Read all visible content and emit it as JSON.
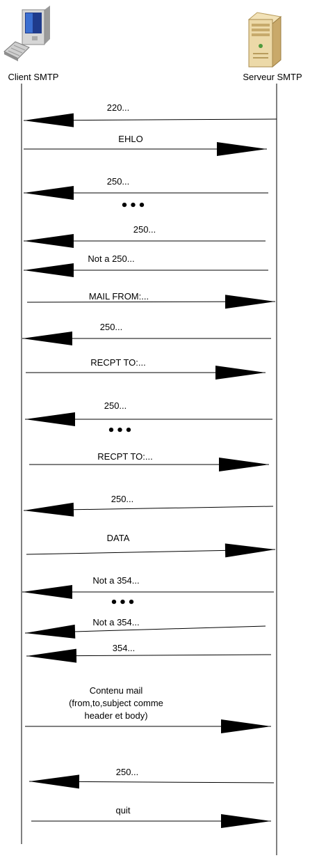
{
  "participants": {
    "client": {
      "label": "Client SMTP",
      "icon": "desktop-computer-icon"
    },
    "server": {
      "label": "Serveur SMTP",
      "icon": "server-tower-icon"
    }
  },
  "messages": [
    {
      "dir": "to-client",
      "label": "220..."
    },
    {
      "dir": "to-server",
      "label": "EHLO"
    },
    {
      "dir": "to-client",
      "label": "250..."
    },
    {
      "dir": "ellipsis",
      "label": "..."
    },
    {
      "dir": "to-client",
      "label": "250..."
    },
    {
      "dir": "to-client",
      "label": "Not a 250..."
    },
    {
      "dir": "to-server",
      "label": "MAIL FROM:..."
    },
    {
      "dir": "to-client",
      "label": "250..."
    },
    {
      "dir": "to-server",
      "label": "RECPT TO:..."
    },
    {
      "dir": "to-client",
      "label": "250..."
    },
    {
      "dir": "ellipsis",
      "label": "..."
    },
    {
      "dir": "to-server",
      "label": "RECPT TO:..."
    },
    {
      "dir": "to-client",
      "label": "250..."
    },
    {
      "dir": "to-server",
      "label": "DATA"
    },
    {
      "dir": "to-client",
      "label": "Not a 354..."
    },
    {
      "dir": "ellipsis",
      "label": "..."
    },
    {
      "dir": "to-client",
      "label": "Not a 354..."
    },
    {
      "dir": "to-client",
      "label": "354..."
    },
    {
      "dir": "to-server",
      "label": "Contenu mail\n(from,to,subject comme\nheader et body)"
    },
    {
      "dir": "to-client",
      "label": "250..."
    },
    {
      "dir": "to-server",
      "label": "quit"
    }
  ],
  "colors": {
    "line": "#000000",
    "background": "#ffffff"
  }
}
